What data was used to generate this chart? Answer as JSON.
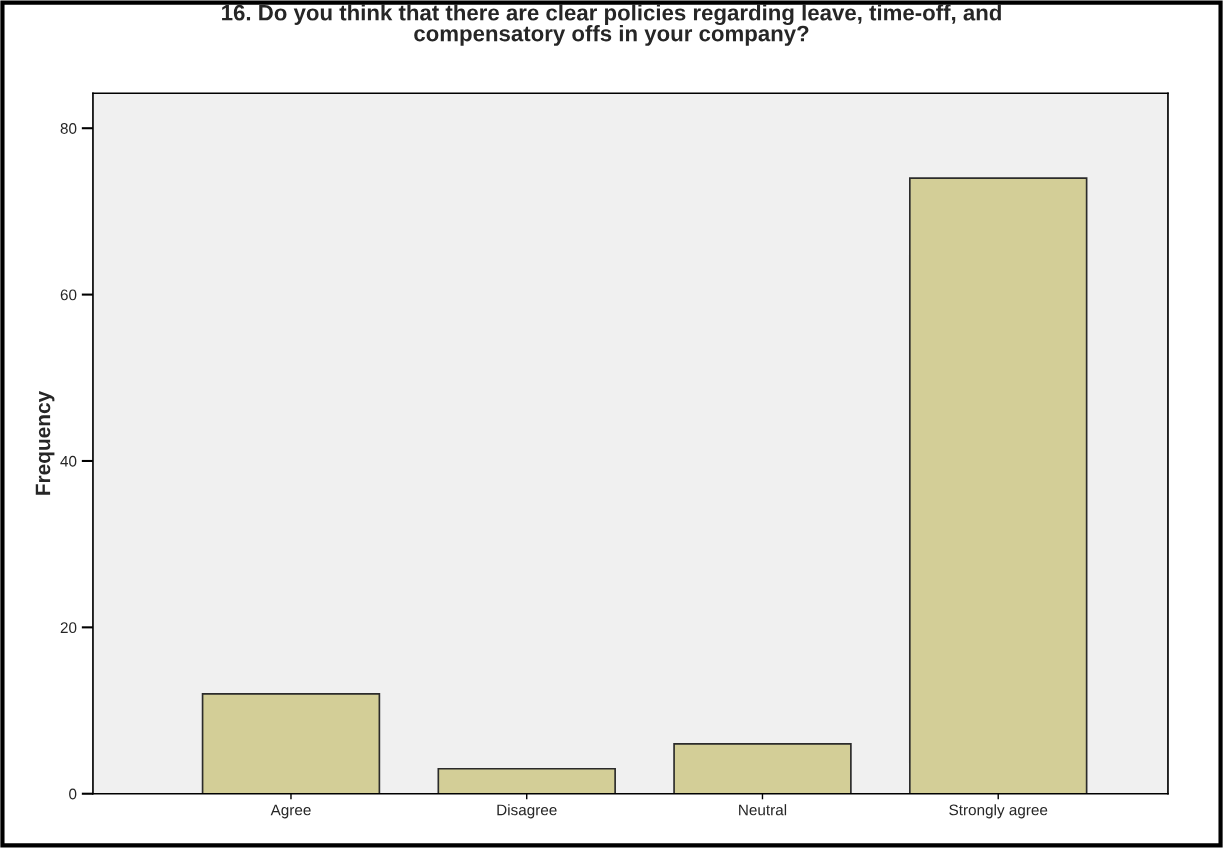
{
  "chart_data": {
    "type": "bar",
    "title": "16. Do you think that there are clear policies regarding leave, time-off, and\ncompensatory offs in your company?",
    "ylabel": "Frequency",
    "categories": [
      "Agree",
      "Disagree",
      "Neutral",
      "Strongly agree"
    ],
    "values": [
      12,
      3,
      6,
      74
    ],
    "color": "#d3ce97",
    "ylim": [
      0,
      84.2
    ],
    "yticks": [
      0,
      20,
      40,
      60,
      80
    ],
    "grid": false
  }
}
